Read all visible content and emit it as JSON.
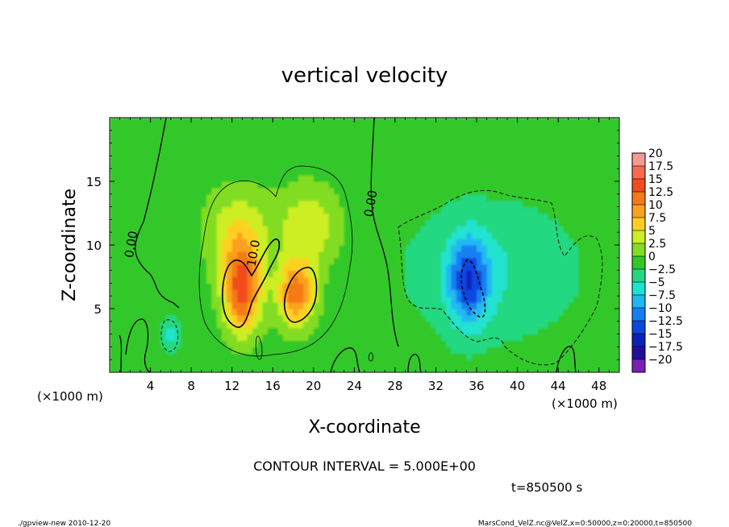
{
  "chart_data": {
    "type": "heatmap",
    "title": "vertical velocity",
    "xlabel": "X-coordinate",
    "ylabel": "Z-coordinate",
    "x_unit_left": "(×1000 m)",
    "x_unit_right": "(×1000 m)",
    "xlim": [
      0,
      50
    ],
    "ylim": [
      0,
      20
    ],
    "xticks": [
      4,
      8,
      12,
      16,
      20,
      24,
      28,
      32,
      36,
      40,
      44,
      48
    ],
    "xtick_labels": [
      "4",
      "8",
      "12",
      "16",
      "20",
      "24",
      "28",
      "32",
      "36",
      "40",
      "44",
      "48"
    ],
    "yticks": [
      5,
      10,
      15
    ],
    "ytick_labels": [
      "5",
      "10",
      "15"
    ],
    "contour_interval_text": "CONTOUR INTERVAL = 5.000E+00",
    "contour_labels": [
      {
        "text": "0.00",
        "x": 2.5,
        "z": 10.0
      },
      {
        "text": "10.0",
        "x": 14.5,
        "z": 9.3
      },
      {
        "text": "0.00",
        "x": 26.0,
        "z": 13.2
      }
    ],
    "time_text": "t=850500 s",
    "footer_left": "./gpview-new  2010-12-20",
    "footer_right": "MarsCond_VelZ.nc@VelZ,x=0:50000,z=0:20000,t=850500",
    "colorbar": {
      "levels": [
        20,
        17.5,
        15,
        12.5,
        10,
        7.5,
        5,
        2.5,
        0,
        -2.5,
        -5,
        -7.5,
        -10,
        -12.5,
        -15,
        -17.5,
        -20
      ],
      "labels": [
        "20",
        "17.5",
        "15",
        "12.5",
        "10",
        "7.5",
        "5",
        "2.5",
        "0",
        "−2.5",
        "−5",
        "−7.5",
        "−10",
        "−12.5",
        "−15",
        "−17.5",
        "−20"
      ],
      "colors": [
        "#f89898",
        "#f66a4e",
        "#f24c1e",
        "#f57a16",
        "#fba21c",
        "#ffd022",
        "#ccee22",
        "#82dd22",
        "#30c82a",
        "#22d880",
        "#20e2d0",
        "#20b8f4",
        "#1480f0",
        "#0f46e0",
        "#0c22b8",
        "#20109a",
        "#7a20b8"
      ]
    },
    "features": [
      {
        "name": "updraft-left-core",
        "x": 13.0,
        "z": 6.5,
        "value": 15,
        "sx": 1.3,
        "sz": 2.4
      },
      {
        "name": "updraft-right-core",
        "x": 18.3,
        "z": 6.2,
        "value": 13,
        "sx": 1.3,
        "sz": 1.8
      },
      {
        "name": "updraft-upper-left",
        "x": 12.5,
        "z": 11.0,
        "value": 6,
        "sx": 2.2,
        "sz": 2.5
      },
      {
        "name": "updraft-upper-right",
        "x": 19.5,
        "z": 11.5,
        "value": 6,
        "sx": 2.2,
        "sz": 2.3
      },
      {
        "name": "downdraft-core",
        "x": 35.2,
        "z": 7.2,
        "value": -11,
        "sx": 1.4,
        "sz": 2.4
      },
      {
        "name": "downdraft-broad",
        "x": 37.5,
        "z": 8.0,
        "value": -3.5,
        "sx": 5.5,
        "sz": 3.5
      },
      {
        "name": "downdraft-small-left",
        "x": 6.0,
        "z": 3.0,
        "value": -5,
        "sx": 0.6,
        "sz": 0.9
      }
    ],
    "background_value": 1.0
  }
}
